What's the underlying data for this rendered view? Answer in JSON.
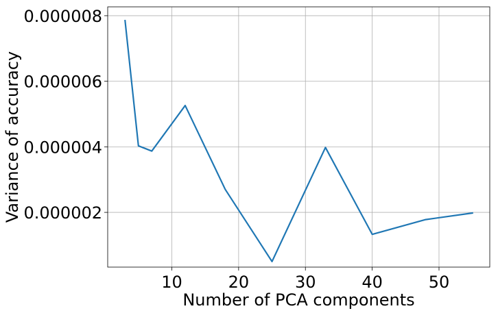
{
  "chart_data": {
    "type": "line",
    "title": "",
    "xlabel": "Number of PCA components",
    "ylabel": "Variance of accuracy",
    "xlim": [
      0.4,
      57.6
    ],
    "ylim": [
      3.3e-07,
      8.27e-06
    ],
    "x_ticks": [
      10,
      20,
      30,
      40,
      50
    ],
    "x_tick_labels": [
      "10",
      "20",
      "30",
      "40",
      "50"
    ],
    "y_ticks": [
      2e-06,
      4e-06,
      6e-06,
      8e-06
    ],
    "y_tick_labels": [
      "0.000002",
      "0.000004",
      "0.000006",
      "0.000008"
    ],
    "grid": true,
    "series": [
      {
        "color": "#1f77b4",
        "x": [
          3,
          5,
          7,
          12,
          18,
          25,
          33,
          40,
          48,
          55
        ],
        "y": [
          7.85e-06,
          4.03e-06,
          3.87e-06,
          5.26e-06,
          2.7e-06,
          5e-07,
          3.98e-06,
          1.33e-06,
          1.78e-06,
          1.98e-06
        ]
      }
    ]
  }
}
